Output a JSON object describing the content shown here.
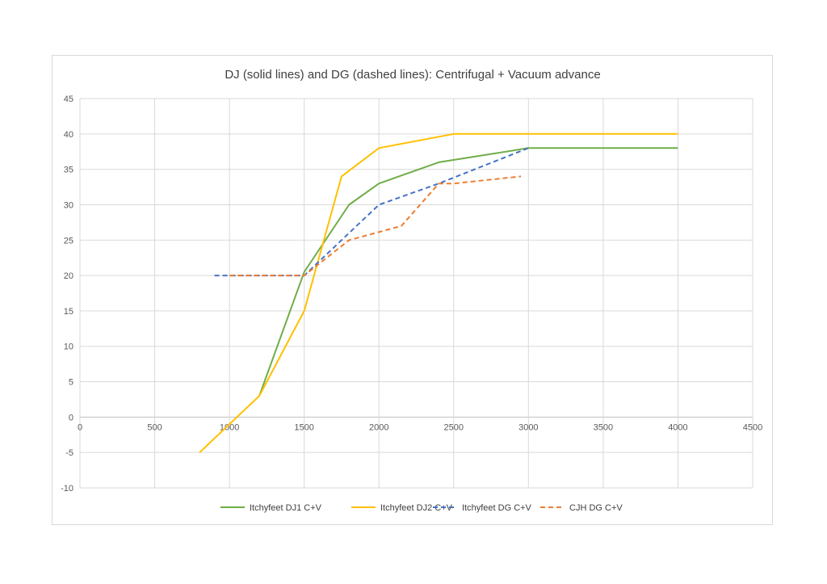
{
  "chart_data": {
    "type": "line",
    "title": "DJ (solid lines) and DG (dashed lines): Centrifugal + Vacuum advance",
    "xlabel": "",
    "ylabel": "",
    "xlim": [
      0,
      4500
    ],
    "ylim": [
      -10,
      45
    ],
    "x_ticks": [
      0,
      500,
      1000,
      1500,
      2000,
      2500,
      3000,
      3500,
      4000,
      4500
    ],
    "y_ticks": [
      -10,
      -5,
      0,
      5,
      10,
      15,
      20,
      25,
      30,
      35,
      40,
      45
    ],
    "grid": true,
    "legend_position": "bottom",
    "series": [
      {
        "name": "Itchyfeet DJ1 C+V",
        "color": "#70ad47",
        "dashed": false,
        "points": [
          [
            1200,
            3
          ],
          [
            1500,
            20.5
          ],
          [
            1800,
            30
          ],
          [
            2000,
            33
          ],
          [
            2400,
            36
          ],
          [
            3000,
            38
          ],
          [
            4000,
            38
          ]
        ]
      },
      {
        "name": "Itchyfeet DJ2 C+V",
        "color": "#ffc000",
        "dashed": false,
        "points": [
          [
            800,
            -5
          ],
          [
            1200,
            3
          ],
          [
            1500,
            15
          ],
          [
            1750,
            34
          ],
          [
            2000,
            38
          ],
          [
            2500,
            40
          ],
          [
            3000,
            40
          ],
          [
            4000,
            40
          ]
        ]
      },
      {
        "name": "Itchyfeet DG C+V",
        "color": "#4472c4",
        "dashed": true,
        "points": [
          [
            900,
            20
          ],
          [
            1500,
            20
          ],
          [
            1800,
            26
          ],
          [
            2000,
            30
          ],
          [
            2400,
            33
          ],
          [
            3000,
            38
          ]
        ]
      },
      {
        "name": "CJH DG C+V",
        "color": "#ed7d31",
        "dashed": true,
        "points": [
          [
            1000,
            20
          ],
          [
            1500,
            20
          ],
          [
            1800,
            25
          ],
          [
            2150,
            27
          ],
          [
            2400,
            33
          ],
          [
            2500,
            33
          ],
          [
            2950,
            34
          ]
        ]
      }
    ]
  }
}
